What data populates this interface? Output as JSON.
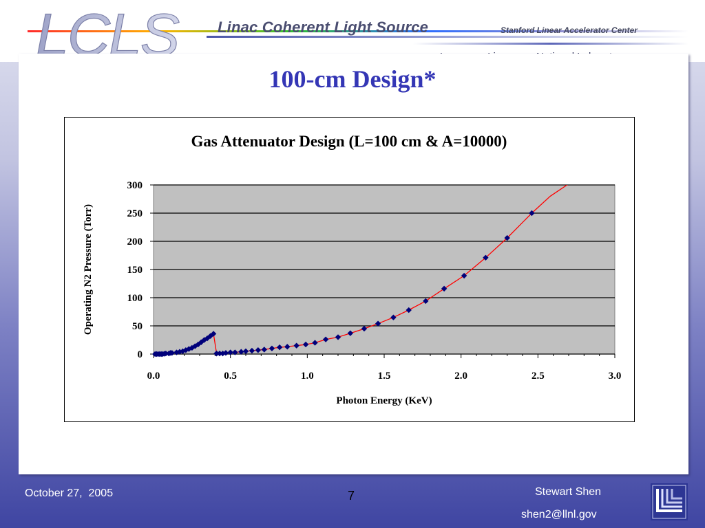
{
  "header": {
    "logo_text": "LCLS",
    "title": "Linac Coherent Light Source",
    "organization": "Stanford Linear Accelerator Center",
    "lab": "Lawrence Livermore National Laboratory"
  },
  "slide": {
    "title": "100-cm Design*"
  },
  "colors": {
    "title": "#3436b5",
    "plot_area": "#c0c0c0",
    "curve": "#ff0000",
    "marker": "#00007a"
  },
  "chart_data": {
    "type": "scatter",
    "title": "Gas Attenuator Design (L=100 cm & A=10000)",
    "xlabel": "Photon Energy (KeV)",
    "ylabel": "Operating N2 Pressure (Torr)",
    "xlim": [
      0.0,
      3.0
    ],
    "ylim": [
      0,
      300
    ],
    "xticks": [
      "0.0",
      "0.5",
      "1.0",
      "1.5",
      "2.0",
      "2.5",
      "3.0"
    ],
    "yticks": [
      "0",
      "50",
      "100",
      "150",
      "200",
      "250",
      "300"
    ],
    "grid": true,
    "legend": "none",
    "series": [
      {
        "x": [
          0.01,
          0.02,
          0.03,
          0.04,
          0.05,
          0.06,
          0.07,
          0.08,
          0.1,
          0.11,
          0.12,
          0.15,
          0.17,
          0.19,
          0.21,
          0.23,
          0.25,
          0.27,
          0.29,
          0.31,
          0.33,
          0.35,
          0.37,
          0.39,
          0.41,
          0.41,
          0.43,
          0.45,
          0.47,
          0.5,
          0.53,
          0.57,
          0.6,
          0.64,
          0.68,
          0.72,
          0.77,
          0.82,
          0.87,
          0.93,
          0.99,
          1.05,
          1.12,
          1.2,
          1.28,
          1.37,
          1.46,
          1.56,
          1.66,
          1.77,
          1.89,
          2.02,
          2.16,
          2.3,
          2.46
        ],
        "y": [
          0,
          0,
          0,
          0,
          0,
          0,
          0.5,
          1,
          1,
          2,
          2,
          3,
          4,
          5,
          7,
          9,
          11,
          14,
          17,
          21,
          25,
          28,
          32,
          36,
          1,
          1,
          1,
          1,
          2,
          3,
          3,
          4,
          5,
          6,
          7,
          8,
          10,
          12,
          13,
          15,
          17,
          20,
          26,
          30,
          37,
          45,
          54,
          65,
          78,
          94,
          116,
          139,
          171,
          206,
          250
        ]
      }
    ],
    "curve_extension": {
      "x": [
        2.58,
        2.7
      ],
      "y": [
        280,
        302
      ]
    }
  },
  "footer": {
    "date": "October 27,  2005",
    "page": "7",
    "author": "Stewart Shen",
    "email": "shen2@llnl.gov"
  }
}
